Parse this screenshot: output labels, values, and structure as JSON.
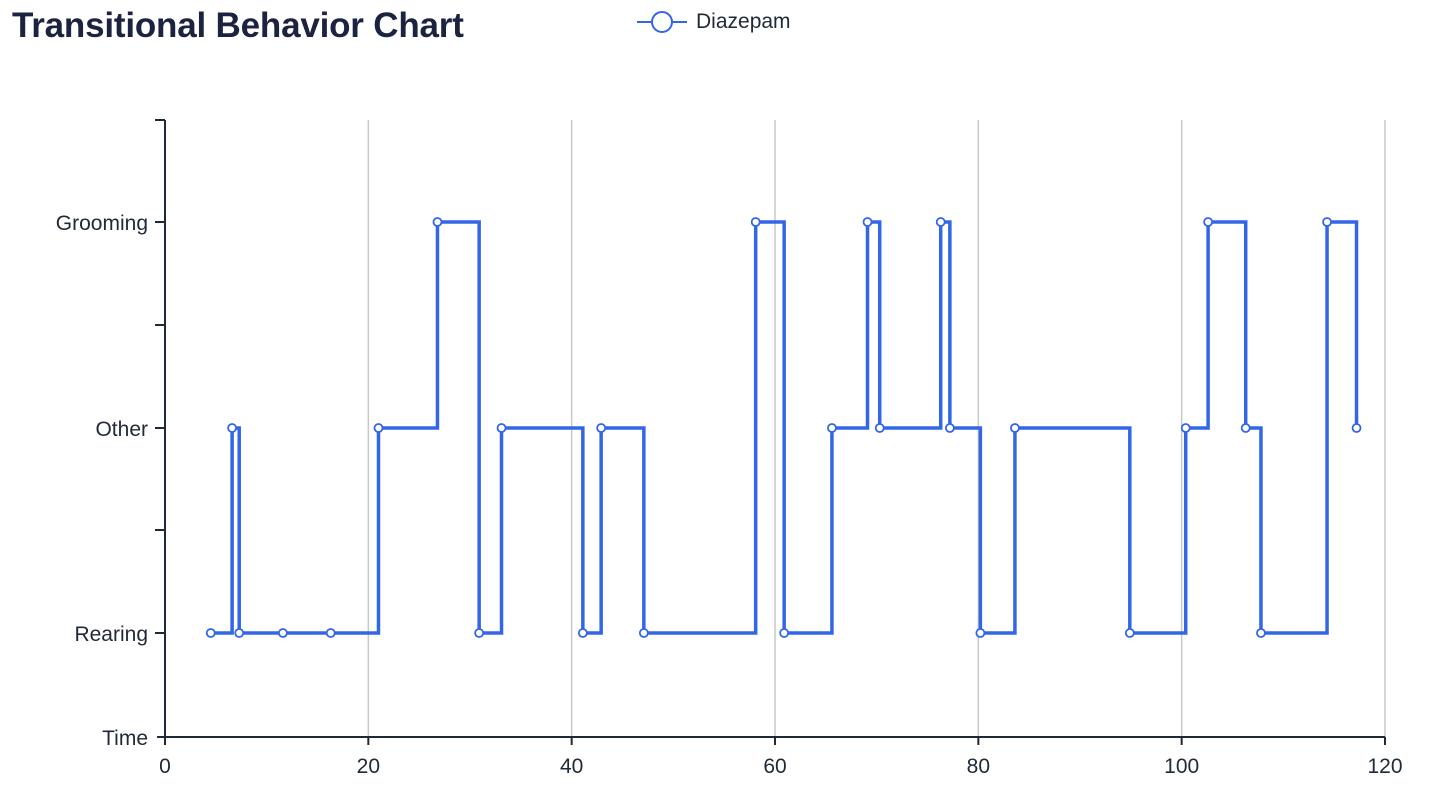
{
  "title": "Transitional Behavior Chart",
  "legend": {
    "series_name": "Diazepam"
  },
  "colors": {
    "series": "#3366e6",
    "axis": "#1f2937",
    "grid": "#c8c8c8",
    "marker_fill": "#ffffff"
  },
  "chart_data": {
    "type": "line",
    "step": "start",
    "title": "Transitional Behavior Chart",
    "xlabel": "",
    "ylabel": "",
    "xlim": [
      0,
      120
    ],
    "x_ticks": [
      0,
      20,
      40,
      60,
      80,
      100,
      120
    ],
    "y_categories": [
      "Time",
      "Rearing",
      "Other",
      "Grooming"
    ],
    "grid": {
      "x": true,
      "y": false
    },
    "legend_position": "top-center",
    "series": [
      {
        "name": "Diazepam",
        "points": [
          {
            "x": 4.5,
            "y": "Rearing"
          },
          {
            "x": 6.6,
            "y": "Other"
          },
          {
            "x": 7.3,
            "y": "Rearing"
          },
          {
            "x": 11.6,
            "y": "Rearing"
          },
          {
            "x": 16.3,
            "y": "Rearing"
          },
          {
            "x": 21.0,
            "y": "Other"
          },
          {
            "x": 26.8,
            "y": "Grooming"
          },
          {
            "x": 30.9,
            "y": "Rearing"
          },
          {
            "x": 33.1,
            "y": "Other"
          },
          {
            "x": 41.1,
            "y": "Rearing"
          },
          {
            "x": 42.9,
            "y": "Other"
          },
          {
            "x": 47.1,
            "y": "Rearing"
          },
          {
            "x": 58.1,
            "y": "Grooming"
          },
          {
            "x": 60.9,
            "y": "Rearing"
          },
          {
            "x": 65.6,
            "y": "Other"
          },
          {
            "x": 69.1,
            "y": "Grooming"
          },
          {
            "x": 70.3,
            "y": "Other"
          },
          {
            "x": 76.3,
            "y": "Grooming"
          },
          {
            "x": 77.2,
            "y": "Other"
          },
          {
            "x": 80.2,
            "y": "Rearing"
          },
          {
            "x": 83.6,
            "y": "Other"
          },
          {
            "x": 94.9,
            "y": "Rearing"
          },
          {
            "x": 100.4,
            "y": "Other"
          },
          {
            "x": 102.6,
            "y": "Grooming"
          },
          {
            "x": 106.3,
            "y": "Other"
          },
          {
            "x": 107.8,
            "y": "Rearing"
          },
          {
            "x": 114.3,
            "y": "Grooming"
          },
          {
            "x": 117.2,
            "y": "Other"
          }
        ]
      }
    ]
  }
}
